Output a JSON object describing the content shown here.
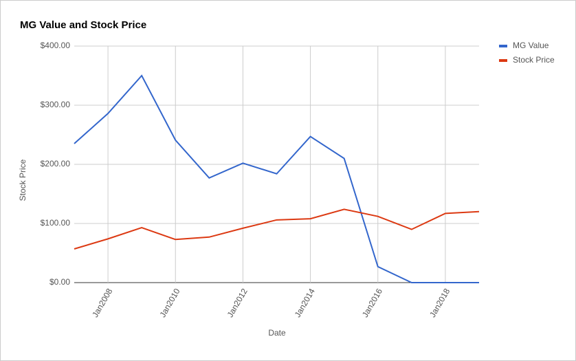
{
  "chart_data": {
    "type": "line",
    "title": "MG Value and Stock Price",
    "x_label": "Date",
    "y_label": "Stock Price",
    "x": [
      2007,
      2008,
      2009,
      2010,
      2011,
      2012,
      2013,
      2014,
      2015,
      2016,
      2017,
      2018,
      2019
    ],
    "xlim": [
      2007,
      2019
    ],
    "xticks": [
      {
        "value": 2008,
        "label": "Jan2008"
      },
      {
        "value": 2010,
        "label": "Jan2010"
      },
      {
        "value": 2012,
        "label": "Jan2012"
      },
      {
        "value": 2014,
        "label": "Jan2014"
      },
      {
        "value": 2016,
        "label": "Jan2016"
      },
      {
        "value": 2018,
        "label": "Jan2018"
      }
    ],
    "ylim": [
      0,
      400
    ],
    "yticks": [
      {
        "value": 0,
        "label": "$0.00"
      },
      {
        "value": 100,
        "label": "$100.00"
      },
      {
        "value": 200,
        "label": "$200.00"
      },
      {
        "value": 300,
        "label": "$300.00"
      },
      {
        "value": 400,
        "label": "$400.00"
      }
    ],
    "grid": true,
    "legend": "right",
    "series": [
      {
        "name": "MG Value",
        "color": "#3366cc",
        "values": [
          235,
          286,
          350,
          241,
          177,
          202,
          184,
          247,
          210,
          27,
          0,
          0,
          0
        ]
      },
      {
        "name": "Stock Price",
        "color": "#dc3912",
        "values": [
          57,
          74,
          93,
          73,
          77,
          92,
          106,
          108,
          124,
          112,
          90,
          117,
          120
        ]
      }
    ]
  }
}
